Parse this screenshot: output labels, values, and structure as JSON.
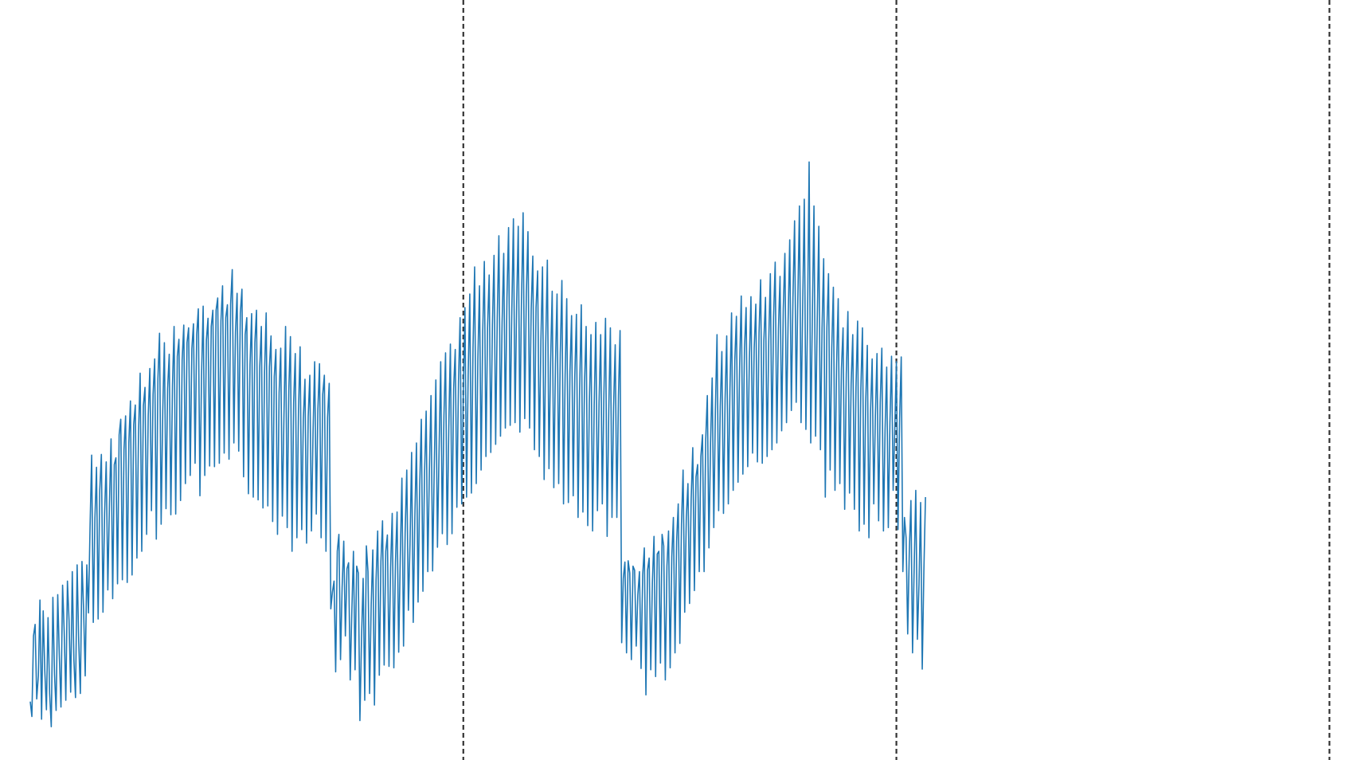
{
  "chart_data": {
    "type": "line",
    "title": "",
    "xlabel": "",
    "ylabel": "",
    "grid": false,
    "legend": "none",
    "axes_visible": false,
    "line_color": "#1f77b4",
    "divider_color": "#333333",
    "vertical_lines_x": [
      268,
      536,
      804
    ],
    "x_range": [
      0,
      826
    ],
    "y_range": [
      0,
      1
    ],
    "series": [
      {
        "color": "#1f77b4",
        "x_start": 0,
        "x_step": 1,
        "values": [
          0.058,
          0.036,
          0.155,
          0.172,
          0.062,
          0.096,
          0.208,
          0.032,
          0.192,
          0.103,
          0.046,
          0.182,
          0.07,
          0.021,
          0.212,
          0.098,
          0.045,
          0.216,
          0.125,
          0.05,
          0.23,
          0.162,
          0.06,
          0.236,
          0.178,
          0.072,
          0.25,
          0.12,
          0.064,
          0.26,
          0.146,
          0.07,
          0.265,
          0.194,
          0.096,
          0.26,
          0.189,
          0.316,
          0.422,
          0.175,
          0.328,
          0.404,
          0.18,
          0.37,
          0.423,
          0.19,
          0.336,
          0.412,
          0.223,
          0.35,
          0.446,
          0.21,
          0.408,
          0.418,
          0.232,
          0.452,
          0.475,
          0.238,
          0.43,
          0.48,
          0.234,
          0.44,
          0.502,
          0.245,
          0.467,
          0.496,
          0.27,
          0.455,
          0.543,
          0.28,
          0.495,
          0.522,
          0.305,
          0.48,
          0.55,
          0.34,
          0.512,
          0.564,
          0.298,
          0.535,
          0.602,
          0.32,
          0.488,
          0.588,
          0.343,
          0.52,
          0.571,
          0.334,
          0.525,
          0.612,
          0.335,
          0.568,
          0.593,
          0.355,
          0.563,
          0.614,
          0.38,
          0.588,
          0.61,
          0.392,
          0.579,
          0.616,
          0.41,
          0.6,
          0.638,
          0.362,
          0.54,
          0.642,
          0.392,
          0.592,
          0.624,
          0.406,
          0.612,
          0.636,
          0.405,
          0.636,
          0.654,
          0.41,
          0.62,
          0.672,
          0.425,
          0.625,
          0.644,
          0.416,
          0.645,
          0.696,
          0.44,
          0.604,
          0.661,
          0.428,
          0.632,
          0.667,
          0.39,
          0.6,
          0.625,
          0.365,
          0.556,
          0.631,
          0.36,
          0.588,
          0.636,
          0.356,
          0.552,
          0.612,
          0.344,
          0.546,
          0.632,
          0.347,
          0.552,
          0.598,
          0.324,
          0.538,
          0.578,
          0.305,
          0.514,
          0.58,
          0.332,
          0.48,
          0.612,
          0.315,
          0.518,
          0.597,
          0.28,
          0.5,
          0.572,
          0.3,
          0.488,
          0.582,
          0.312,
          0.476,
          0.534,
          0.292,
          0.479,
          0.54,
          0.31,
          0.455,
          0.56,
          0.335,
          0.49,
          0.557,
          0.3,
          0.512,
          0.54,
          0.28,
          0.478,
          0.528,
          0.195,
          0.22,
          0.236,
          0.102,
          0.28,
          0.305,
          0.12,
          0.227,
          0.295,
          0.155,
          0.254,
          0.263,
          0.09,
          0.19,
          0.28,
          0.105,
          0.258,
          0.248,
          0.03,
          0.152,
          0.24,
          0.06,
          0.288,
          0.25,
          0.07,
          0.202,
          0.282,
          0.053,
          0.238,
          0.31,
          0.097,
          0.265,
          0.325,
          0.112,
          0.28,
          0.304,
          0.11,
          0.257,
          0.336,
          0.108,
          0.264,
          0.338,
          0.131,
          0.273,
          0.388,
          0.14,
          0.308,
          0.4,
          0.193,
          0.29,
          0.426,
          0.175,
          0.33,
          0.44,
          0.205,
          0.375,
          0.475,
          0.221,
          0.395,
          0.487,
          0.25,
          0.4,
          0.51,
          0.251,
          0.403,
          0.533,
          0.286,
          0.43,
          0.56,
          0.306,
          0.48,
          0.573,
          0.29,
          0.464,
          0.586,
          0.306,
          0.52,
          0.578,
          0.345,
          0.53,
          0.625,
          0.35,
          0.512,
          0.64,
          0.36,
          0.54,
          0.66,
          0.366,
          0.58,
          0.7,
          0.38,
          0.563,
          0.672,
          0.4,
          0.604,
          0.708,
          0.42,
          0.61,
          0.688,
          0.426,
          0.614,
          0.717,
          0.438,
          0.625,
          0.746,
          0.45,
          0.618,
          0.72,
          0.462,
          0.655,
          0.758,
          0.466,
          0.634,
          0.771,
          0.47,
          0.645,
          0.76,
          0.456,
          0.651,
          0.78,
          0.476,
          0.66,
          0.752,
          0.462,
          0.638,
          0.716,
          0.43,
          0.64,
          0.694,
          0.42,
          0.59,
          0.7,
          0.386,
          0.588,
          0.71,
          0.402,
          0.56,
          0.664,
          0.374,
          0.556,
          0.66,
          0.38,
          0.572,
          0.68,
          0.35,
          0.54,
          0.653,
          0.352,
          0.546,
          0.628,
          0.362,
          0.54,
          0.63,
          0.33,
          0.523,
          0.644,
          0.338,
          0.528,
          0.612,
          0.318,
          0.5,
          0.6,
          0.31,
          0.497,
          0.618,
          0.34,
          0.5,
          0.6,
          0.35,
          0.512,
          0.624,
          0.302,
          0.488,
          0.61,
          0.33,
          0.494,
          0.585,
          0.33,
          0.51,
          0.606,
          0.145,
          0.24,
          0.264,
          0.13,
          0.266,
          0.248,
          0.12,
          0.258,
          0.252,
          0.14,
          0.216,
          0.25,
          0.107,
          0.245,
          0.285,
          0.068,
          0.252,
          0.27,
          0.105,
          0.234,
          0.302,
          0.095,
          0.276,
          0.28,
          0.115,
          0.305,
          0.288,
          0.09,
          0.258,
          0.31,
          0.108,
          0.272,
          0.33,
          0.13,
          0.295,
          0.35,
          0.144,
          0.32,
          0.4,
          0.19,
          0.33,
          0.38,
          0.203,
          0.357,
          0.433,
          0.222,
          0.39,
          0.408,
          0.25,
          0.42,
          0.452,
          0.25,
          0.445,
          0.51,
          0.285,
          0.44,
          0.536,
          0.315,
          0.49,
          0.6,
          0.34,
          0.494,
          0.575,
          0.336,
          0.505,
          0.598,
          0.35,
          0.52,
          0.632,
          0.37,
          0.562,
          0.627,
          0.382,
          0.555,
          0.657,
          0.394,
          0.58,
          0.64,
          0.405,
          0.56,
          0.656,
          0.425,
          0.58,
          0.645,
          0.412,
          0.602,
          0.681,
          0.41,
          0.592,
          0.655,
          0.42,
          0.59,
          0.69,
          0.43,
          0.626,
          0.707,
          0.44,
          0.608,
          0.686,
          0.458,
          0.638,
          0.72,
          0.47,
          0.62,
          0.74,
          0.488,
          0.655,
          0.768,
          0.5,
          0.65,
          0.79,
          0.47,
          0.64,
          0.8,
          0.46,
          0.62,
          0.855,
          0.44,
          0.63,
          0.79,
          0.45,
          0.62,
          0.76,
          0.43,
          0.61,
          0.712,
          0.36,
          0.61,
          0.69,
          0.4,
          0.58,
          0.67,
          0.37,
          0.557,
          0.653,
          0.38,
          0.55,
          0.61,
          0.342,
          0.542,
          0.634,
          0.366,
          0.528,
          0.6,
          0.342,
          0.522,
          0.62,
          0.31,
          0.52,
          0.61,
          0.32,
          0.5,
          0.584,
          0.3,
          0.486,
          0.564,
          0.35,
          0.48,
          0.572,
          0.325,
          0.5,
          0.58,
          0.31,
          0.46,
          0.552,
          0.315,
          0.47,
          0.568,
          0.37,
          0.46,
          0.56,
          0.312,
          0.476,
          0.567,
          0.25,
          0.33,
          0.3,
          0.158,
          0.28,
          0.355,
          0.13,
          0.255,
          0.37,
          0.15,
          0.232,
          0.352,
          0.106,
          0.25,
          0.36
        ]
      }
    ]
  }
}
